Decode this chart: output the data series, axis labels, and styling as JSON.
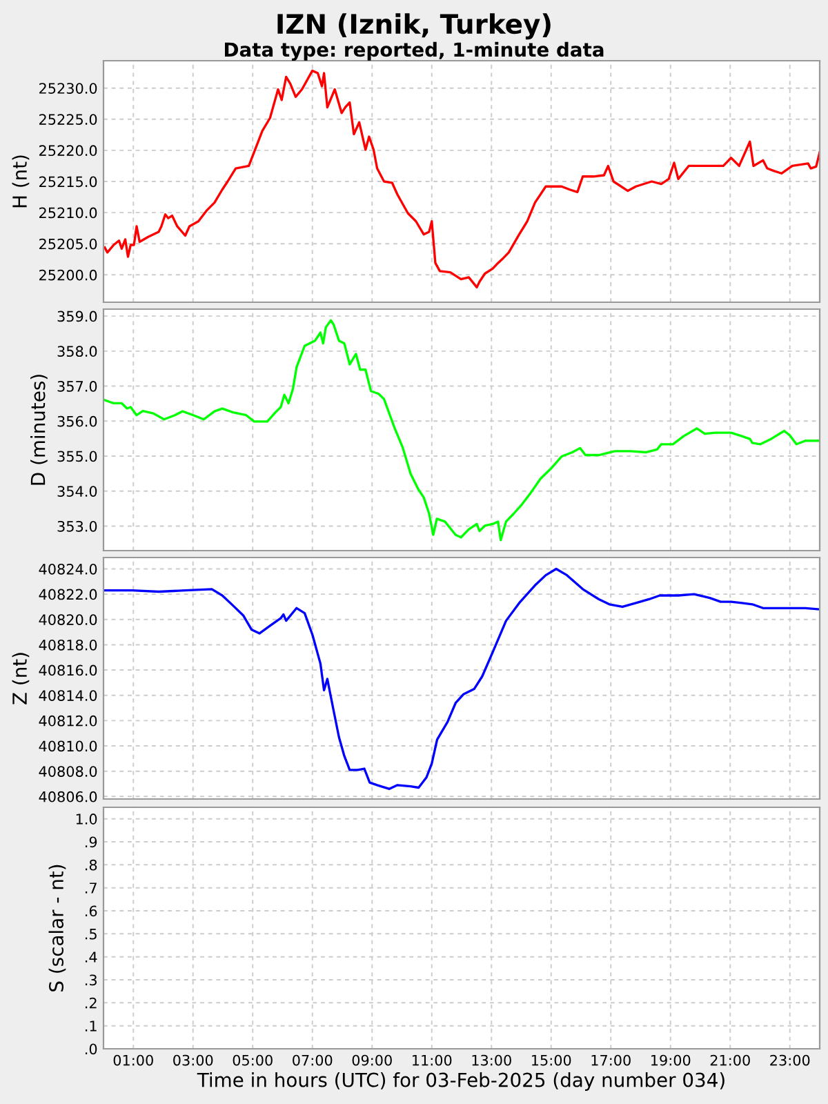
{
  "chart_data": [
    {
      "type": "line",
      "title": "IZN (Iznik, Turkey)",
      "subtitle": "Data type: reported, 1-minute data",
      "ylabel": "H (nt)",
      "grid": true,
      "tick_labels": "y",
      "xlim": [
        0,
        24
      ],
      "xticks": [
        {
          "value": 1,
          "label": null
        },
        {
          "value": 3,
          "label": null
        },
        {
          "value": 5,
          "label": null
        },
        {
          "value": 7,
          "label": null
        },
        {
          "value": 9,
          "label": null
        },
        {
          "value": 11,
          "label": null
        },
        {
          "value": 13,
          "label": null
        },
        {
          "value": 15,
          "label": null
        },
        {
          "value": 17,
          "label": null
        },
        {
          "value": 19,
          "label": null
        },
        {
          "value": 21,
          "label": null
        },
        {
          "value": 23,
          "label": null
        }
      ],
      "ylim": [
        25195.6,
        25234.4
      ],
      "yticks": [
        {
          "value": 25200,
          "label": "25200.0"
        },
        {
          "value": 25205,
          "label": "25205.0"
        },
        {
          "value": 25210,
          "label": "25210.0"
        },
        {
          "value": 25215,
          "label": "25215.0"
        },
        {
          "value": 25220,
          "label": "25220.0"
        },
        {
          "value": 25225,
          "label": "25225.0"
        },
        {
          "value": 25230,
          "label": "25230.0"
        }
      ],
      "series": [
        {
          "color": "#ff0000",
          "x": [
            0.04,
            0.13,
            0.34,
            0.52,
            0.61,
            0.73,
            0.82,
            0.91,
            1.02,
            1.11,
            1.21,
            1.5,
            1.85,
            1.94,
            2.07,
            2.17,
            2.3,
            2.47,
            2.74,
            2.88,
            3.18,
            3.45,
            3.72,
            3.98,
            4.16,
            4.43,
            4.87,
            5.32,
            5.58,
            5.85,
            5.97,
            6.12,
            6.26,
            6.44,
            6.65,
            7.0,
            7.18,
            7.32,
            7.39,
            7.5,
            7.75,
            7.98,
            8.1,
            8.25,
            8.39,
            8.57,
            8.78,
            8.9,
            9.05,
            9.17,
            9.4,
            9.67,
            9.85,
            10.2,
            10.47,
            10.73,
            10.91,
            11.0,
            11.12,
            11.27,
            11.62,
            11.98,
            12.24,
            12.51,
            12.6,
            12.78,
            13.04,
            13.22,
            13.4,
            13.58,
            13.93,
            14.2,
            14.46,
            14.82,
            15.35,
            15.62,
            15.88,
            16.06,
            16.41,
            16.77,
            16.91,
            17.09,
            17.57,
            17.84,
            18.37,
            18.69,
            18.94,
            19.12,
            19.26,
            19.61,
            20.32,
            20.77,
            21.03,
            21.3,
            21.66,
            21.78,
            22.1,
            22.24,
            22.46,
            22.72,
            23.08,
            23.61,
            23.7,
            23.88,
            24.0
          ],
          "values": [
            25204.4,
            25203.6,
            25204.8,
            25205.5,
            25204.2,
            25205.7,
            25202.9,
            25204.8,
            25204.8,
            25207.8,
            25205.3,
            25206.1,
            25206.9,
            25207.8,
            25209.7,
            25209.1,
            25209.5,
            25207.8,
            25206.3,
            25207.8,
            25208.6,
            25210.3,
            25211.6,
            25213.7,
            25215.0,
            25217.1,
            25217.5,
            25223.1,
            25225.2,
            25229.8,
            25228.1,
            25231.8,
            25230.7,
            25228.6,
            25229.8,
            25232.8,
            25232.4,
            25230.3,
            25232.4,
            25226.9,
            25229.8,
            25226.0,
            25226.9,
            25227.7,
            25222.6,
            25224.5,
            25220.1,
            25222.2,
            25220.1,
            25217.1,
            25215.0,
            25214.8,
            25212.9,
            25209.9,
            25208.6,
            25206.5,
            25206.9,
            25208.6,
            25201.9,
            25200.6,
            25200.4,
            25199.3,
            25199.6,
            25198.0,
            25198.9,
            25200.2,
            25201.0,
            25201.9,
            25202.7,
            25203.6,
            25206.5,
            25208.6,
            25211.6,
            25214.2,
            25214.2,
            25213.7,
            25213.3,
            25215.8,
            25215.8,
            25216.0,
            25217.5,
            25215.0,
            25213.5,
            25214.2,
            25215.0,
            25214.6,
            25215.4,
            25218.0,
            25215.4,
            25217.5,
            25217.5,
            25217.5,
            25218.8,
            25217.5,
            25221.4,
            25217.5,
            25218.4,
            25217.1,
            25216.7,
            25216.3,
            25217.5,
            25217.9,
            25217.1,
            25217.4,
            25219.7
          ]
        }
      ]
    },
    {
      "type": "line",
      "ylabel": "D (minutes)",
      "grid": true,
      "tick_labels": "y",
      "xlim": [
        0,
        24
      ],
      "xticks": [
        {
          "value": 1,
          "label": null
        },
        {
          "value": 3,
          "label": null
        },
        {
          "value": 5,
          "label": null
        },
        {
          "value": 7,
          "label": null
        },
        {
          "value": 9,
          "label": null
        },
        {
          "value": 11,
          "label": null
        },
        {
          "value": 13,
          "label": null
        },
        {
          "value": 15,
          "label": null
        },
        {
          "value": 17,
          "label": null
        },
        {
          "value": 19,
          "label": null
        },
        {
          "value": 21,
          "label": null
        },
        {
          "value": 23,
          "label": null
        }
      ],
      "ylim": [
        352.3,
        359.2
      ],
      "yticks": [
        {
          "value": 353,
          "label": "353.0"
        },
        {
          "value": 354,
          "label": "354.0"
        },
        {
          "value": 355,
          "label": "355.0"
        },
        {
          "value": 356,
          "label": "356.0"
        },
        {
          "value": 357,
          "label": "357.0"
        },
        {
          "value": 358,
          "label": "358.0"
        },
        {
          "value": 359,
          "label": "359.0"
        }
      ],
      "series": [
        {
          "color": "#00ff00",
          "x": [
            0.04,
            0.34,
            0.61,
            0.79,
            0.91,
            1.11,
            1.32,
            1.67,
            2.03,
            2.39,
            2.65,
            3.01,
            3.36,
            3.72,
            3.98,
            4.34,
            4.78,
            5.05,
            5.49,
            5.76,
            5.94,
            6.06,
            6.2,
            6.35,
            6.47,
            6.74,
            7.09,
            7.27,
            7.36,
            7.45,
            7.62,
            7.71,
            7.89,
            8.07,
            8.25,
            8.46,
            8.6,
            8.78,
            8.96,
            9.22,
            9.4,
            9.76,
            10.02,
            10.29,
            10.55,
            10.73,
            10.91,
            11.05,
            11.17,
            11.44,
            11.8,
            11.98,
            12.24,
            12.51,
            12.6,
            12.78,
            13.04,
            13.22,
            13.31,
            13.49,
            13.75,
            14.02,
            14.29,
            14.64,
            15.0,
            15.35,
            15.71,
            15.97,
            16.15,
            16.6,
            17.13,
            17.66,
            18.19,
            18.55,
            18.69,
            19.08,
            19.44,
            19.88,
            20.15,
            20.5,
            21.03,
            21.39,
            21.66,
            21.74,
            22.01,
            22.37,
            22.81,
            22.99,
            23.22,
            23.52,
            24.0
          ],
          "values": [
            356.6,
            356.51,
            356.51,
            356.36,
            356.4,
            356.17,
            356.29,
            356.22,
            356.05,
            356.17,
            356.28,
            356.17,
            356.05,
            356.28,
            356.36,
            356.25,
            356.17,
            355.99,
            355.99,
            356.25,
            356.4,
            356.75,
            356.51,
            356.93,
            357.54,
            358.15,
            358.3,
            358.53,
            358.22,
            358.68,
            358.88,
            358.76,
            358.3,
            358.22,
            357.62,
            357.92,
            357.47,
            357.47,
            356.86,
            356.78,
            356.63,
            355.79,
            355.26,
            354.5,
            354.05,
            353.82,
            353.36,
            352.75,
            353.21,
            353.13,
            352.75,
            352.68,
            352.91,
            353.06,
            352.86,
            353.01,
            353.06,
            353.13,
            352.6,
            353.13,
            353.36,
            353.62,
            353.92,
            354.35,
            354.65,
            354.99,
            355.11,
            355.23,
            355.03,
            355.03,
            355.14,
            355.14,
            355.11,
            355.19,
            355.34,
            355.34,
            355.57,
            355.79,
            355.64,
            355.67,
            355.67,
            355.57,
            355.49,
            355.38,
            355.34,
            355.49,
            355.72,
            355.6,
            355.34,
            355.44,
            355.44
          ]
        }
      ]
    },
    {
      "type": "line",
      "ylabel": "Z (nt)",
      "grid": true,
      "tick_labels": "y",
      "xlim": [
        0,
        24
      ],
      "xticks": [
        {
          "value": 1,
          "label": null
        },
        {
          "value": 3,
          "label": null
        },
        {
          "value": 5,
          "label": null
        },
        {
          "value": 7,
          "label": null
        },
        {
          "value": 9,
          "label": null
        },
        {
          "value": 11,
          "label": null
        },
        {
          "value": 13,
          "label": null
        },
        {
          "value": 15,
          "label": null
        },
        {
          "value": 17,
          "label": null
        },
        {
          "value": 19,
          "label": null
        },
        {
          "value": 21,
          "label": null
        },
        {
          "value": 23,
          "label": null
        }
      ],
      "ylim": [
        40805.8,
        40824.9
      ],
      "yticks": [
        {
          "value": 40806,
          "label": "40806.0"
        },
        {
          "value": 40808,
          "label": "40808.0"
        },
        {
          "value": 40810,
          "label": "40810.0"
        },
        {
          "value": 40812,
          "label": "40812.0"
        },
        {
          "value": 40814,
          "label": "40814.0"
        },
        {
          "value": 40816,
          "label": "40816.0"
        },
        {
          "value": 40818,
          "label": "40818.0"
        },
        {
          "value": 40820,
          "label": "40820.0"
        },
        {
          "value": 40822,
          "label": "40822.0"
        },
        {
          "value": 40824,
          "label": "40824.0"
        }
      ],
      "series": [
        {
          "color": "#0000ff",
          "x": [
            0.04,
            0.96,
            1.85,
            2.74,
            3.63,
            3.98,
            4.34,
            4.69,
            4.96,
            5.23,
            5.58,
            5.94,
            6.03,
            6.12,
            6.47,
            6.74,
            7.0,
            7.27,
            7.39,
            7.5,
            7.71,
            7.89,
            8.07,
            8.25,
            8.51,
            8.74,
            8.92,
            9.17,
            9.58,
            9.85,
            10.29,
            10.56,
            10.82,
            11.0,
            11.18,
            11.53,
            11.8,
            12.07,
            12.42,
            12.69,
            13.04,
            13.49,
            13.93,
            14.46,
            14.82,
            15.17,
            15.53,
            16.06,
            16.6,
            16.95,
            17.39,
            17.84,
            18.28,
            18.64,
            19.26,
            19.79,
            20.32,
            20.68,
            21.03,
            21.39,
            21.74,
            22.1,
            22.81,
            23.52,
            24.0
          ],
          "values": [
            40822.3,
            40822.3,
            40822.2,
            40822.3,
            40822.4,
            40821.9,
            40821.1,
            40820.3,
            40819.2,
            40818.9,
            40819.5,
            40820.1,
            40820.4,
            40819.9,
            40820.9,
            40820.5,
            40818.8,
            40816.5,
            40814.4,
            40815.3,
            40812.8,
            40810.7,
            40809.2,
            40808.1,
            40808.1,
            40808.2,
            40807.1,
            40806.9,
            40806.6,
            40806.9,
            40806.8,
            40806.7,
            40807.5,
            40808.6,
            40810.5,
            40811.9,
            40813.4,
            40814.1,
            40814.5,
            40815.5,
            40817.4,
            40819.9,
            40821.3,
            40822.7,
            40823.5,
            40824.0,
            40823.5,
            40822.4,
            40821.6,
            40821.2,
            40821.0,
            40821.3,
            40821.6,
            40821.9,
            40821.9,
            40822.0,
            40821.7,
            40821.4,
            40821.4,
            40821.3,
            40821.2,
            40820.9,
            40820.9,
            40820.9,
            40820.8
          ]
        }
      ]
    },
    {
      "type": "line",
      "ylabel": "S (scalar - nt)",
      "xlabel": "Time in hours (UTC) for 03-Feb-2025 (day number 034)",
      "grid": true,
      "xlim": [
        0,
        24
      ],
      "xticks": [
        {
          "value": 1,
          "label": "01:00"
        },
        {
          "value": 3,
          "label": "03:00"
        },
        {
          "value": 5,
          "label": "05:00"
        },
        {
          "value": 7,
          "label": "07:00"
        },
        {
          "value": 9,
          "label": "09:00"
        },
        {
          "value": 11,
          "label": "11:00"
        },
        {
          "value": 13,
          "label": "13:00"
        },
        {
          "value": 15,
          "label": "15:00"
        },
        {
          "value": 17,
          "label": "17:00"
        },
        {
          "value": 19,
          "label": "19:00"
        },
        {
          "value": 21,
          "label": "21:00"
        },
        {
          "value": 23,
          "label": "23:00"
        }
      ],
      "ylim": [
        0,
        1.05
      ],
      "yticks": [
        {
          "value": 0,
          "label": ".0"
        },
        {
          "value": 0.1,
          "label": ".1"
        },
        {
          "value": 0.2,
          "label": ".2"
        },
        {
          "value": 0.3,
          "label": ".3"
        },
        {
          "value": 0.4,
          "label": ".4"
        },
        {
          "value": 0.5,
          "label": ".5"
        },
        {
          "value": 0.6,
          "label": ".6"
        },
        {
          "value": 0.7,
          "label": ".7"
        },
        {
          "value": 0.8,
          "label": ".8"
        },
        {
          "value": 0.9,
          "label": ".9"
        },
        {
          "value": 1.0,
          "label": "1.0"
        }
      ]
    }
  ]
}
